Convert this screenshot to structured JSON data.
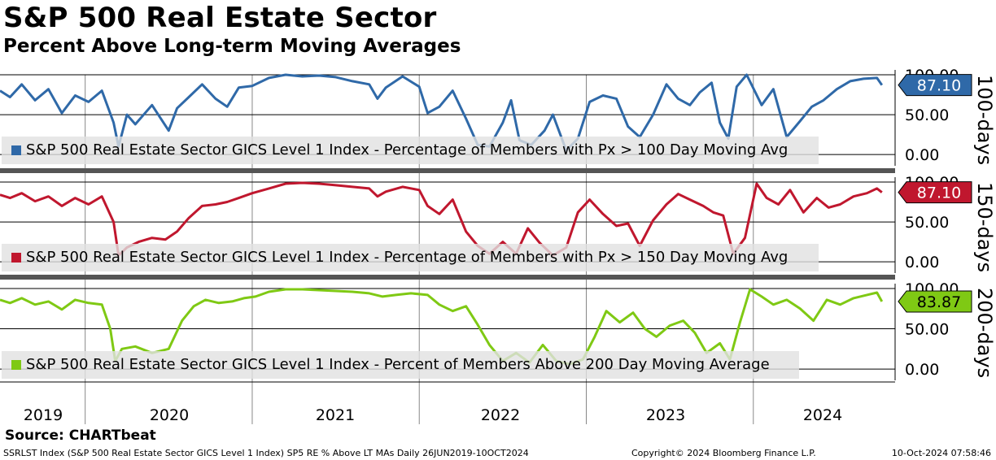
{
  "title": "S&P 500 Real Estate Sector",
  "subtitle": "Percent Above Long-term Moving Averages",
  "source": "Source: CHARTbeat",
  "footer": {
    "left": "SSRLST Index (S&P 500 Real Estate Sector GICS Level 1 Index) SP5 RE % Above LT MAs  Daily 26JUN2019-10OCT2024",
    "middle": "Copyright© 2024 Bloomberg Finance L.P.",
    "right": "10-Oct-2024 07:58:46"
  },
  "chart_data": [
    {
      "type": "line",
      "panel_label": "100-days",
      "legend": "S&P 500 Real Estate Sector GICS Level 1 Index - Percentage of Members with Px > 100 Day Moving Avg",
      "last_value": "87.10",
      "color": "#2f69a8",
      "ylim": [
        0,
        100
      ],
      "yticks": [
        "0.00",
        "50.00",
        "100.00"
      ],
      "x": [
        2019.49,
        2019.55,
        2019.62,
        2019.7,
        2019.78,
        2019.86,
        2019.94,
        2020.02,
        2020.1,
        2020.17,
        2020.2,
        2020.25,
        2020.3,
        2020.4,
        2020.5,
        2020.55,
        2020.62,
        2020.7,
        2020.78,
        2020.85,
        2020.92,
        2021.0,
        2021.1,
        2021.2,
        2021.3,
        2021.4,
        2021.5,
        2021.6,
        2021.7,
        2021.75,
        2021.8,
        2021.9,
        2022.0,
        2022.05,
        2022.12,
        2022.2,
        2022.28,
        2022.35,
        2022.42,
        2022.5,
        2022.55,
        2022.6,
        2022.67,
        2022.75,
        2022.8,
        2022.88,
        2022.95,
        2023.02,
        2023.1,
        2023.18,
        2023.25,
        2023.32,
        2023.4,
        2023.48,
        2023.55,
        2023.62,
        2023.68,
        2023.75,
        2023.8,
        2023.85,
        2023.9,
        2023.96,
        2024.05,
        2024.12,
        2024.2,
        2024.28,
        2024.35,
        2024.42,
        2024.5,
        2024.58,
        2024.66,
        2024.74,
        2024.77
      ],
      "values": [
        80,
        72,
        88,
        68,
        82,
        52,
        74,
        66,
        80,
        40,
        10,
        50,
        38,
        62,
        30,
        58,
        72,
        88,
        70,
        60,
        84,
        86,
        96,
        100,
        98,
        99,
        97,
        92,
        88,
        70,
        84,
        98,
        85,
        52,
        60,
        80,
        45,
        12,
        10,
        40,
        68,
        18,
        12,
        30,
        50,
        5,
        20,
        66,
        74,
        70,
        35,
        22,
        50,
        88,
        70,
        62,
        78,
        90,
        40,
        20,
        85,
        100,
        62,
        82,
        22,
        42,
        60,
        68,
        82,
        92,
        95,
        96,
        87.1
      ]
    },
    {
      "type": "line",
      "panel_label": "150-days",
      "legend": "S&P 500 Real Estate Sector GICS Level 1 Index - Percentage of Members with Px > 150 Day Moving Avg",
      "last_value": "87.10",
      "color": "#c0172e",
      "ylim": [
        0,
        100
      ],
      "yticks": [
        "0.00",
        "50.00",
        "100.00"
      ],
      "x": [
        2019.49,
        2019.55,
        2019.62,
        2019.7,
        2019.78,
        2019.86,
        2019.94,
        2020.02,
        2020.1,
        2020.17,
        2020.2,
        2020.25,
        2020.32,
        2020.4,
        2020.48,
        2020.55,
        2020.62,
        2020.7,
        2020.78,
        2020.85,
        2020.92,
        2021.0,
        2021.1,
        2021.2,
        2021.3,
        2021.4,
        2021.5,
        2021.6,
        2021.7,
        2021.75,
        2021.8,
        2021.9,
        2022.0,
        2022.05,
        2022.12,
        2022.2,
        2022.28,
        2022.35,
        2022.42,
        2022.5,
        2022.58,
        2022.65,
        2022.72,
        2022.8,
        2022.88,
        2022.95,
        2023.02,
        2023.1,
        2023.18,
        2023.25,
        2023.32,
        2023.4,
        2023.48,
        2023.55,
        2023.62,
        2023.7,
        2023.76,
        2023.82,
        2023.88,
        2023.95,
        2024.02,
        2024.08,
        2024.15,
        2024.22,
        2024.3,
        2024.38,
        2024.45,
        2024.52,
        2024.6,
        2024.68,
        2024.74,
        2024.77
      ],
      "values": [
        84,
        80,
        86,
        76,
        82,
        70,
        80,
        72,
        82,
        50,
        8,
        18,
        25,
        30,
        28,
        38,
        55,
        70,
        72,
        75,
        80,
        86,
        92,
        98,
        99,
        98,
        96,
        94,
        92,
        82,
        88,
        94,
        90,
        70,
        60,
        78,
        38,
        20,
        10,
        25,
        10,
        42,
        24,
        8,
        18,
        62,
        78,
        60,
        45,
        48,
        20,
        52,
        72,
        85,
        78,
        70,
        62,
        58,
        10,
        30,
        98,
        80,
        72,
        90,
        62,
        80,
        68,
        72,
        82,
        86,
        92,
        87.1
      ]
    },
    {
      "type": "line",
      "panel_label": "200-days",
      "legend": "S&P 500 Real Estate Sector GICS Level 1 Index - Percent of Members Above 200 Day Moving Average",
      "last_value": "83.87",
      "color": "#7fc914",
      "ylim": [
        0,
        100
      ],
      "yticks": [
        "0.00",
        "50.00",
        "100.00"
      ],
      "x": [
        2019.49,
        2019.55,
        2019.62,
        2019.7,
        2019.78,
        2019.86,
        2019.94,
        2020.02,
        2020.1,
        2020.15,
        2020.18,
        2020.22,
        2020.3,
        2020.4,
        2020.5,
        2020.58,
        2020.65,
        2020.72,
        2020.8,
        2020.88,
        2020.95,
        2021.02,
        2021.1,
        2021.2,
        2021.3,
        2021.4,
        2021.5,
        2021.6,
        2021.7,
        2021.78,
        2021.86,
        2021.95,
        2022.05,
        2022.12,
        2022.2,
        2022.28,
        2022.35,
        2022.42,
        2022.5,
        2022.58,
        2022.66,
        2022.74,
        2022.82,
        2022.9,
        2022.98,
        2023.05,
        2023.12,
        2023.2,
        2023.28,
        2023.35,
        2023.42,
        2023.5,
        2023.58,
        2023.65,
        2023.72,
        2023.8,
        2023.86,
        2023.92,
        2023.98,
        2024.05,
        2024.12,
        2024.2,
        2024.28,
        2024.36,
        2024.44,
        2024.52,
        2024.6,
        2024.68,
        2024.74,
        2024.77
      ],
      "values": [
        86,
        82,
        88,
        80,
        84,
        74,
        86,
        82,
        80,
        50,
        10,
        25,
        28,
        20,
        25,
        60,
        78,
        86,
        82,
        84,
        88,
        90,
        96,
        99,
        99,
        98,
        97,
        96,
        94,
        90,
        92,
        94,
        92,
        80,
        72,
        78,
        55,
        30,
        10,
        20,
        8,
        30,
        10,
        6,
        12,
        40,
        72,
        58,
        70,
        50,
        40,
        54,
        60,
        45,
        20,
        32,
        12,
        58,
        99,
        90,
        80,
        86,
        75,
        60,
        86,
        80,
        88,
        92,
        95,
        83.87
      ]
    }
  ],
  "x_axis": {
    "year_labels": [
      "2019",
      "2020",
      "2021",
      "2022",
      "2023",
      "2024"
    ]
  }
}
